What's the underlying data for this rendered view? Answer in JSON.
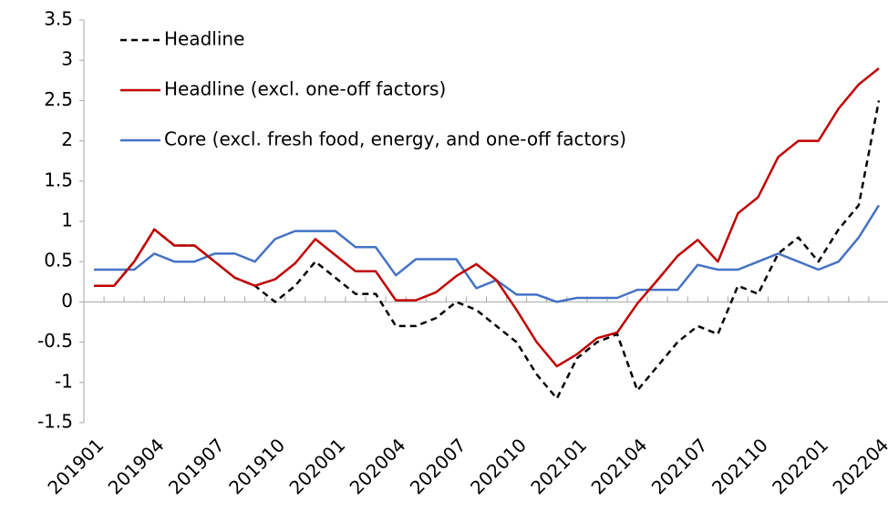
{
  "chart_data": {
    "type": "line",
    "categories": [
      "201901",
      null,
      null,
      "201904",
      null,
      null,
      "201907",
      null,
      null,
      "201910",
      null,
      null,
      "202001",
      null,
      null,
      "202004",
      null,
      null,
      "202007",
      null,
      null,
      "202010",
      null,
      null,
      "202101",
      null,
      null,
      "202104",
      null,
      null,
      "202107",
      null,
      null,
      "202110",
      null,
      null,
      "202201",
      null,
      null,
      "202204"
    ],
    "series": [
      {
        "name": "Headline",
        "color": "#000000",
        "dashed": true,
        "values": [
          0.2,
          0.2,
          0.5,
          0.9,
          0.7,
          0.7,
          0.5,
          0.3,
          0.2,
          0.0,
          0.2,
          0.5,
          0.3,
          0.1,
          0.1,
          -0.3,
          -0.3,
          -0.2,
          0.0,
          -0.1,
          -0.3,
          -0.5,
          -0.9,
          -1.2,
          -0.7,
          -0.5,
          -0.4,
          -1.1,
          -0.8,
          -0.5,
          -0.3,
          -0.4,
          0.2,
          0.1,
          0.6,
          0.8,
          0.5,
          0.9,
          1.2,
          2.5
        ]
      },
      {
        "name": "Headline (excl. one-off factors)",
        "color": "#c00000",
        "values": [
          0.2,
          0.2,
          0.5,
          0.9,
          0.7,
          0.7,
          0.5,
          0.3,
          0.2,
          0.28,
          0.48,
          0.78,
          0.58,
          0.38,
          0.38,
          0.02,
          0.02,
          0.12,
          0.32,
          0.47,
          0.27,
          -0.1,
          -0.5,
          -0.8,
          -0.65,
          -0.45,
          -0.38,
          -0.02,
          0.27,
          0.57,
          0.77,
          0.5,
          1.1,
          1.3,
          1.8,
          2.0,
          2.0,
          2.4,
          2.7,
          2.9
        ]
      },
      {
        "name": "Core (excl. fresh food, energy, and one-off factors)",
        "color": "#4472c4",
        "values": [
          0.4,
          0.4,
          0.4,
          0.6,
          0.5,
          0.5,
          0.6,
          0.6,
          0.5,
          0.78,
          0.88,
          0.88,
          0.88,
          0.68,
          0.68,
          0.33,
          0.53,
          0.53,
          0.53,
          0.17,
          0.27,
          0.09,
          0.09,
          0.0,
          0.05,
          0.05,
          0.05,
          0.15,
          0.15,
          0.15,
          0.46,
          0.4,
          0.4,
          0.5,
          0.6,
          0.5,
          0.4,
          0.5,
          0.8,
          1.2
        ]
      }
    ],
    "ylim": [
      -1.5,
      3.5
    ],
    "yticks": [
      -1.5,
      -1,
      -0.5,
      0,
      0.5,
      1,
      1.5,
      2,
      2.5,
      3,
      3.5
    ],
    "grid": false,
    "legend": "top-left"
  }
}
